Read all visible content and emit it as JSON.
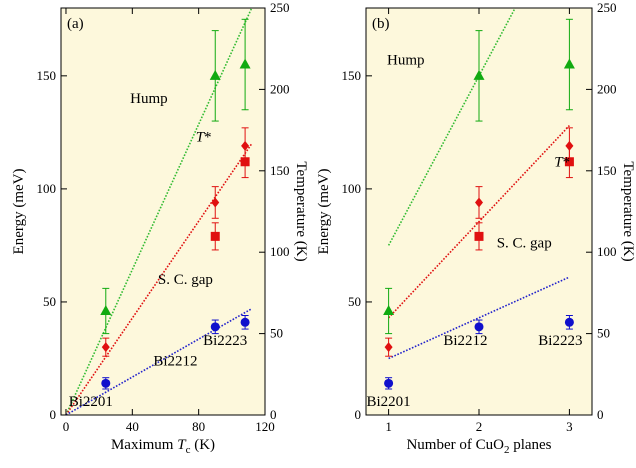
{
  "chart_data": [
    {
      "type": "scatter",
      "panel_label": "(a)",
      "xlabel_prefix": "Maximum ",
      "xlabel_var": "T",
      "xlabel_sub": "c",
      "xlabel_suffix": " (K)",
      "ylabel": "Energy (meV)",
      "y2label": "Temperature (K)",
      "xlim": [
        -3,
        120
      ],
      "ylim": [
        0,
        180
      ],
      "y2lim": [
        0,
        250
      ],
      "x_ticks": [
        0,
        40,
        80,
        120
      ],
      "y_ticks": [
        0,
        50,
        100,
        150
      ],
      "y2_ticks": [
        0,
        50,
        100,
        150,
        200,
        250
      ],
      "background": "#fdf8dc",
      "series": [
        {
          "name": "Hump",
          "color": "#11aa11",
          "marker": "triangle",
          "x": [
            24,
            90,
            108
          ],
          "y": [
            46,
            150,
            155
          ],
          "yerr": [
            10,
            20,
            20
          ]
        },
        {
          "name": "T*",
          "color": "#e01010",
          "marker": "diamond",
          "x": [
            24,
            90,
            108
          ],
          "y": [
            30,
            94,
            119
          ],
          "yerr": [
            4,
            7,
            8
          ]
        },
        {
          "name": "T* (squares)",
          "color": "#e01010",
          "marker": "square",
          "x": [
            90,
            108
          ],
          "y": [
            79,
            112
          ],
          "yerr": [
            6,
            7
          ]
        },
        {
          "name": "S. C. gap",
          "color": "#1010cc",
          "marker": "circle",
          "x": [
            24,
            90,
            108
          ],
          "y": [
            14,
            39,
            41
          ],
          "yerr": [
            2.5,
            3,
            3
          ]
        }
      ],
      "fit_lines": [
        {
          "color": "#33bb33",
          "x": [
            0,
            112
          ],
          "y": [
            0,
            180
          ]
        },
        {
          "color": "#e01010",
          "x": [
            0,
            112
          ],
          "y": [
            0,
            120
          ]
        },
        {
          "color": "#2222cc",
          "x": [
            0,
            112
          ],
          "y": [
            0,
            47
          ]
        }
      ],
      "annotations": [
        {
          "text": "Hump",
          "x": 50,
          "y": 138
        },
        {
          "text": "S. C. gap",
          "x": 72,
          "y": 58
        },
        {
          "text": "Bi2223",
          "x": 96,
          "y": 31
        },
        {
          "text": "Bi2212",
          "x": 66,
          "y": 22
        },
        {
          "text": "Bi2201",
          "x": 15,
          "y": 4
        }
      ],
      "tstar_label": {
        "var": "T",
        "suffix": "*",
        "x": 83,
        "y": 121
      }
    },
    {
      "type": "scatter",
      "panel_label": "(b)",
      "xlabel_prefix": "Number of CuO",
      "xlabel_sub": "2",
      "xlabel_suffix": " planes",
      "ylabel": "Energy (meV)",
      "y2label": "Temperature (K)",
      "xlim": [
        0.75,
        3.25
      ],
      "ylim": [
        0,
        180
      ],
      "y2lim": [
        0,
        250
      ],
      "x_ticks": [
        1,
        2,
        3
      ],
      "y_ticks": [
        0,
        50,
        100,
        150
      ],
      "y2_ticks": [
        0,
        50,
        100,
        150,
        200,
        250
      ],
      "background": "#fdf8dc",
      "series": [
        {
          "name": "Hump",
          "color": "#11aa11",
          "marker": "triangle",
          "x": [
            1,
            2,
            3
          ],
          "y": [
            46,
            150,
            155
          ],
          "yerr": [
            10,
            20,
            20
          ]
        },
        {
          "name": "T*",
          "color": "#e01010",
          "marker": "diamond",
          "x": [
            1,
            2,
            3
          ],
          "y": [
            30,
            94,
            119
          ],
          "yerr": [
            4,
            7,
            8
          ]
        },
        {
          "name": "T* (squares)",
          "color": "#e01010",
          "marker": "square",
          "x": [
            2,
            3
          ],
          "y": [
            79,
            112
          ],
          "yerr": [
            6,
            7
          ]
        },
        {
          "name": "S. C. gap",
          "color": "#1010cc",
          "marker": "circle",
          "x": [
            1,
            2,
            3
          ],
          "y": [
            14,
            39,
            41
          ],
          "yerr": [
            2.5,
            3,
            3
          ]
        }
      ],
      "fit_lines": [
        {
          "color": "#33bb33",
          "x": [
            1,
            2.4
          ],
          "y": [
            75,
            180
          ]
        },
        {
          "color": "#e01010",
          "x": [
            1,
            3
          ],
          "y": [
            43,
            128
          ]
        },
        {
          "color": "#2222cc",
          "x": [
            1,
            3
          ],
          "y": [
            25,
            61
          ]
        }
      ],
      "annotations": [
        {
          "text": "Hump",
          "x": 1.19,
          "y": 155
        },
        {
          "text": "S. C. gap",
          "x": 2.5,
          "y": 74
        },
        {
          "text": "Bi2212",
          "x": 1.85,
          "y": 31
        },
        {
          "text": "Bi2223",
          "x": 2.9,
          "y": 31
        },
        {
          "text": "Bi2201",
          "x": 1.0,
          "y": 4
        }
      ],
      "tstar_label": {
        "var": "T",
        "suffix": "*",
        "x": 2.92,
        "y": 110
      }
    }
  ]
}
